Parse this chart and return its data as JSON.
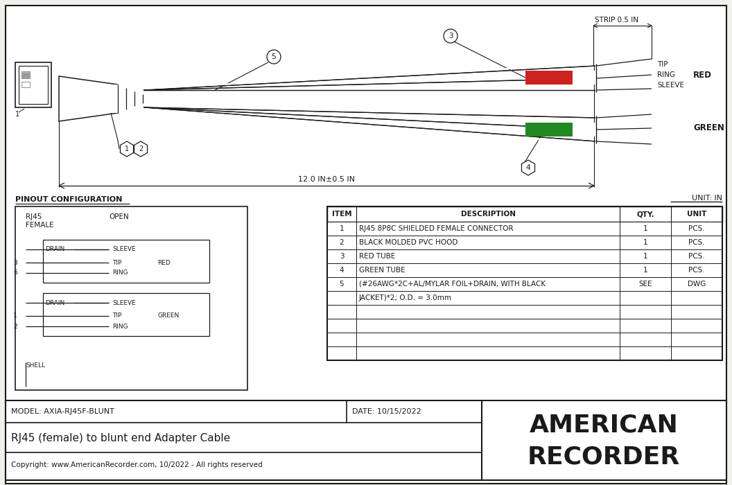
{
  "bg_color": "#f0f0ec",
  "line_color": "#1a1a1a",
  "title_model": "MODEL: AXIA-RJ45F-BLUNT",
  "title_date": "DATE: 10/15/2022",
  "title_main": "RJ45 (female) to blunt end Adapter Cable",
  "copyright": "Copyright: www.AmericanRecorder.com, 10/2022 - All rights reserved",
  "company_line1": "AMERICAN",
  "company_line2": "RECORDER",
  "unit_label": "UNIT: IN",
  "pinout_label": "PINOUT CONFIGURATION",
  "strip_label": "STRIP 0.5 IN",
  "dimension_label": "12.0 IN±0.5 IN",
  "red_color": "#cc2222",
  "green_color": "#228822",
  "table_items": [
    [
      "1",
      "RJ45 8P8C SHIELDED FEMALE CONNECTOR",
      "1",
      "PCS."
    ],
    [
      "2",
      "BLACK MOLDED PVC HOOD",
      "1",
      "PCS."
    ],
    [
      "3",
      "RED TUBE",
      "1",
      "PCS."
    ],
    [
      "4",
      "GREEN TUBE",
      "1",
      "PCS."
    ],
    [
      "5",
      "(#26AWG*2C+AL/MYLAR FOIL+DRAIN, WITH BLACK",
      "SEE",
      "DWG"
    ],
    [
      "",
      "JACKET)*2; O.D. = 3.0mm",
      "",
      ""
    ]
  ]
}
